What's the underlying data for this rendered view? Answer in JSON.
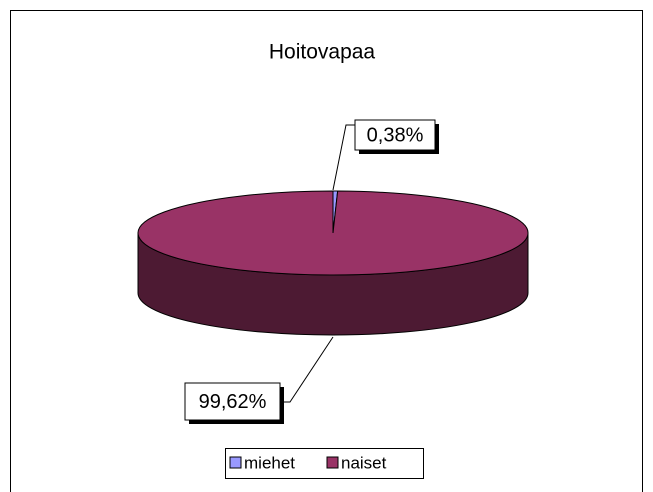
{
  "chart_data": {
    "type": "pie3d",
    "title": "Hoitovapaa",
    "categories": [
      "miehet",
      "naiset"
    ],
    "values": [
      0.38,
      99.62
    ],
    "value_labels": [
      "0,38%",
      "99,62%"
    ],
    "colors": [
      "#9999ff",
      "#993366"
    ],
    "legend": "bottom"
  }
}
